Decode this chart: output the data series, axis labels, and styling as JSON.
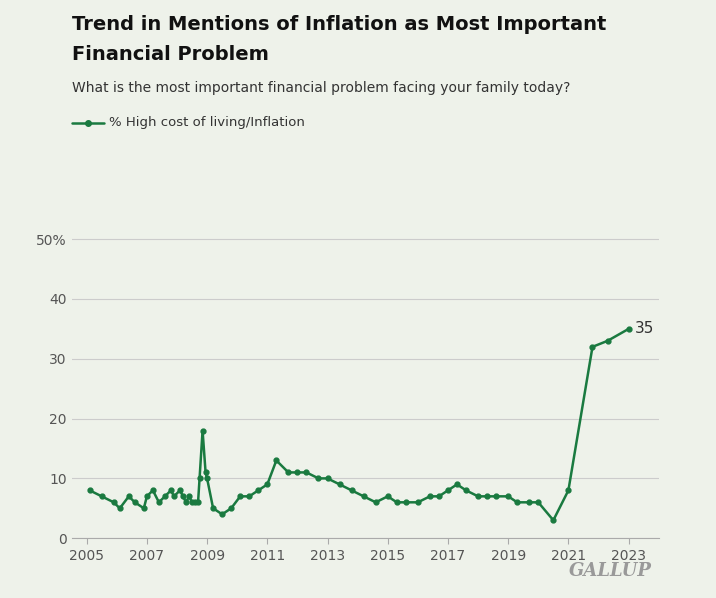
{
  "title_line1": "Trend in Mentions of Inflation as Most Important",
  "title_line2": "Financial Problem",
  "subtitle": "What is the most important financial problem facing your family today?",
  "legend_label": "% High cost of living/Inflation",
  "gallup_label": "GALLUP",
  "line_color": "#1a7a40",
  "background_color": "#eef2ea",
  "yticks": [
    0,
    10,
    20,
    30,
    40,
    50
  ],
  "ytick_labels": [
    "0",
    "10",
    "20",
    "30",
    "40",
    "50%"
  ],
  "xtick_years": [
    2005,
    2007,
    2009,
    2011,
    2013,
    2015,
    2017,
    2019,
    2021,
    2023
  ],
  "annotation_value": "35",
  "xlim_left": 2004.5,
  "xlim_right": 2024.0,
  "ylim_top": 52,
  "data": [
    {
      "year": 2005.1,
      "value": 8
    },
    {
      "year": 2005.5,
      "value": 7
    },
    {
      "year": 2005.9,
      "value": 6
    },
    {
      "year": 2006.1,
      "value": 5
    },
    {
      "year": 2006.4,
      "value": 7
    },
    {
      "year": 2006.6,
      "value": 6
    },
    {
      "year": 2006.9,
      "value": 5
    },
    {
      "year": 2007.0,
      "value": 7
    },
    {
      "year": 2007.2,
      "value": 8
    },
    {
      "year": 2007.4,
      "value": 6
    },
    {
      "year": 2007.6,
      "value": 7
    },
    {
      "year": 2007.8,
      "value": 8
    },
    {
      "year": 2007.9,
      "value": 7
    },
    {
      "year": 2008.1,
      "value": 8
    },
    {
      "year": 2008.2,
      "value": 7
    },
    {
      "year": 2008.3,
      "value": 6
    },
    {
      "year": 2008.4,
      "value": 7
    },
    {
      "year": 2008.5,
      "value": 6
    },
    {
      "year": 2008.6,
      "value": 6
    },
    {
      "year": 2008.7,
      "value": 6
    },
    {
      "year": 2008.75,
      "value": 10
    },
    {
      "year": 2008.85,
      "value": 18
    },
    {
      "year": 2008.95,
      "value": 11
    },
    {
      "year": 2009.0,
      "value": 10
    },
    {
      "year": 2009.2,
      "value": 5
    },
    {
      "year": 2009.5,
      "value": 4
    },
    {
      "year": 2009.8,
      "value": 5
    },
    {
      "year": 2010.1,
      "value": 7
    },
    {
      "year": 2010.4,
      "value": 7
    },
    {
      "year": 2010.7,
      "value": 8
    },
    {
      "year": 2011.0,
      "value": 9
    },
    {
      "year": 2011.3,
      "value": 13
    },
    {
      "year": 2011.7,
      "value": 11
    },
    {
      "year": 2012.0,
      "value": 11
    },
    {
      "year": 2012.3,
      "value": 11
    },
    {
      "year": 2012.7,
      "value": 10
    },
    {
      "year": 2013.0,
      "value": 10
    },
    {
      "year": 2013.4,
      "value": 9
    },
    {
      "year": 2013.8,
      "value": 8
    },
    {
      "year": 2014.2,
      "value": 7
    },
    {
      "year": 2014.6,
      "value": 6
    },
    {
      "year": 2015.0,
      "value": 7
    },
    {
      "year": 2015.3,
      "value": 6
    },
    {
      "year": 2015.6,
      "value": 6
    },
    {
      "year": 2016.0,
      "value": 6
    },
    {
      "year": 2016.4,
      "value": 7
    },
    {
      "year": 2016.7,
      "value": 7
    },
    {
      "year": 2017.0,
      "value": 8
    },
    {
      "year": 2017.3,
      "value": 9
    },
    {
      "year": 2017.6,
      "value": 8
    },
    {
      "year": 2018.0,
      "value": 7
    },
    {
      "year": 2018.3,
      "value": 7
    },
    {
      "year": 2018.6,
      "value": 7
    },
    {
      "year": 2019.0,
      "value": 7
    },
    {
      "year": 2019.3,
      "value": 6
    },
    {
      "year": 2019.7,
      "value": 6
    },
    {
      "year": 2020.0,
      "value": 6
    },
    {
      "year": 2020.5,
      "value": 3
    },
    {
      "year": 2021.0,
      "value": 8
    },
    {
      "year": 2021.8,
      "value": 32
    },
    {
      "year": 2022.3,
      "value": 33
    },
    {
      "year": 2023.0,
      "value": 35
    }
  ]
}
